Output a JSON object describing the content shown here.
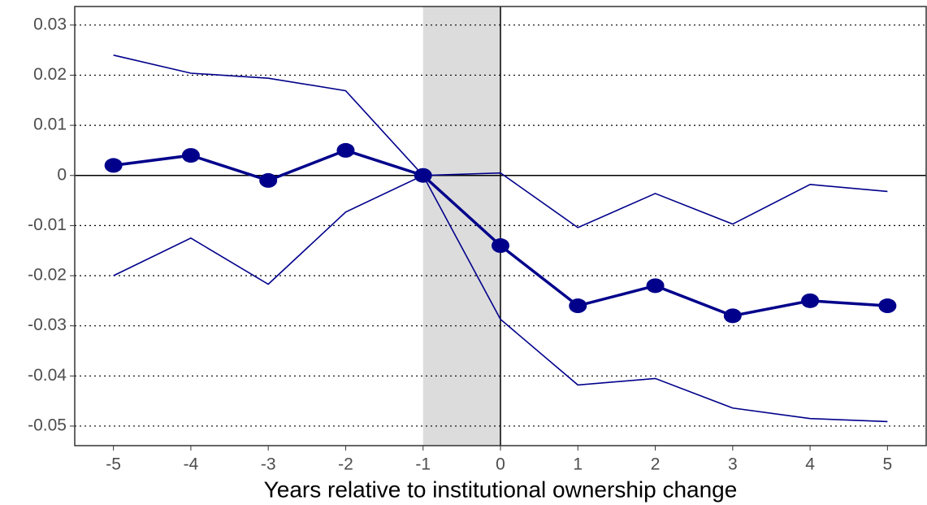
{
  "chart_data": {
    "type": "line",
    "x_label": "Years relative to institutional ownership change",
    "x": [
      -5,
      -4,
      -3,
      -2,
      -1,
      0,
      1,
      2,
      3,
      4,
      5
    ],
    "series": [
      {
        "color": "#00008b",
        "markers": true,
        "values": [
          0.002,
          0.004,
          -0.001,
          0.005,
          0,
          -0.014,
          -0.026,
          -0.022,
          -0.028,
          -0.025,
          -0.026
        ]
      },
      {
        "color": "#00008b",
        "markers": false,
        "values": [
          0.024,
          0.0204,
          0.0194,
          0.0169,
          0,
          0.0005,
          -0.0104,
          -0.0036,
          -0.0097,
          -0.0018,
          -0.0032
        ]
      },
      {
        "color": "#00008b",
        "markers": false,
        "values": [
          -0.02,
          -0.0125,
          -0.0217,
          -0.0073,
          0,
          -0.0287,
          -0.0418,
          -0.0405,
          -0.0464,
          -0.0485,
          -0.0491
        ]
      }
    ],
    "xlim": [
      -5.5,
      5.5
    ],
    "xticks": [
      -5,
      -4,
      -3,
      -2,
      -1,
      0,
      1,
      2,
      3,
      4,
      5
    ],
    "ylim": [
      -0.0539,
      0.0337
    ],
    "yticks": [
      -0.05,
      -0.04,
      -0.03,
      -0.02,
      -0.01,
      0,
      0.01,
      0.02,
      0.03
    ],
    "grid": true,
    "shade": [
      -1,
      0
    ],
    "vline": 0,
    "hline": 0
  }
}
